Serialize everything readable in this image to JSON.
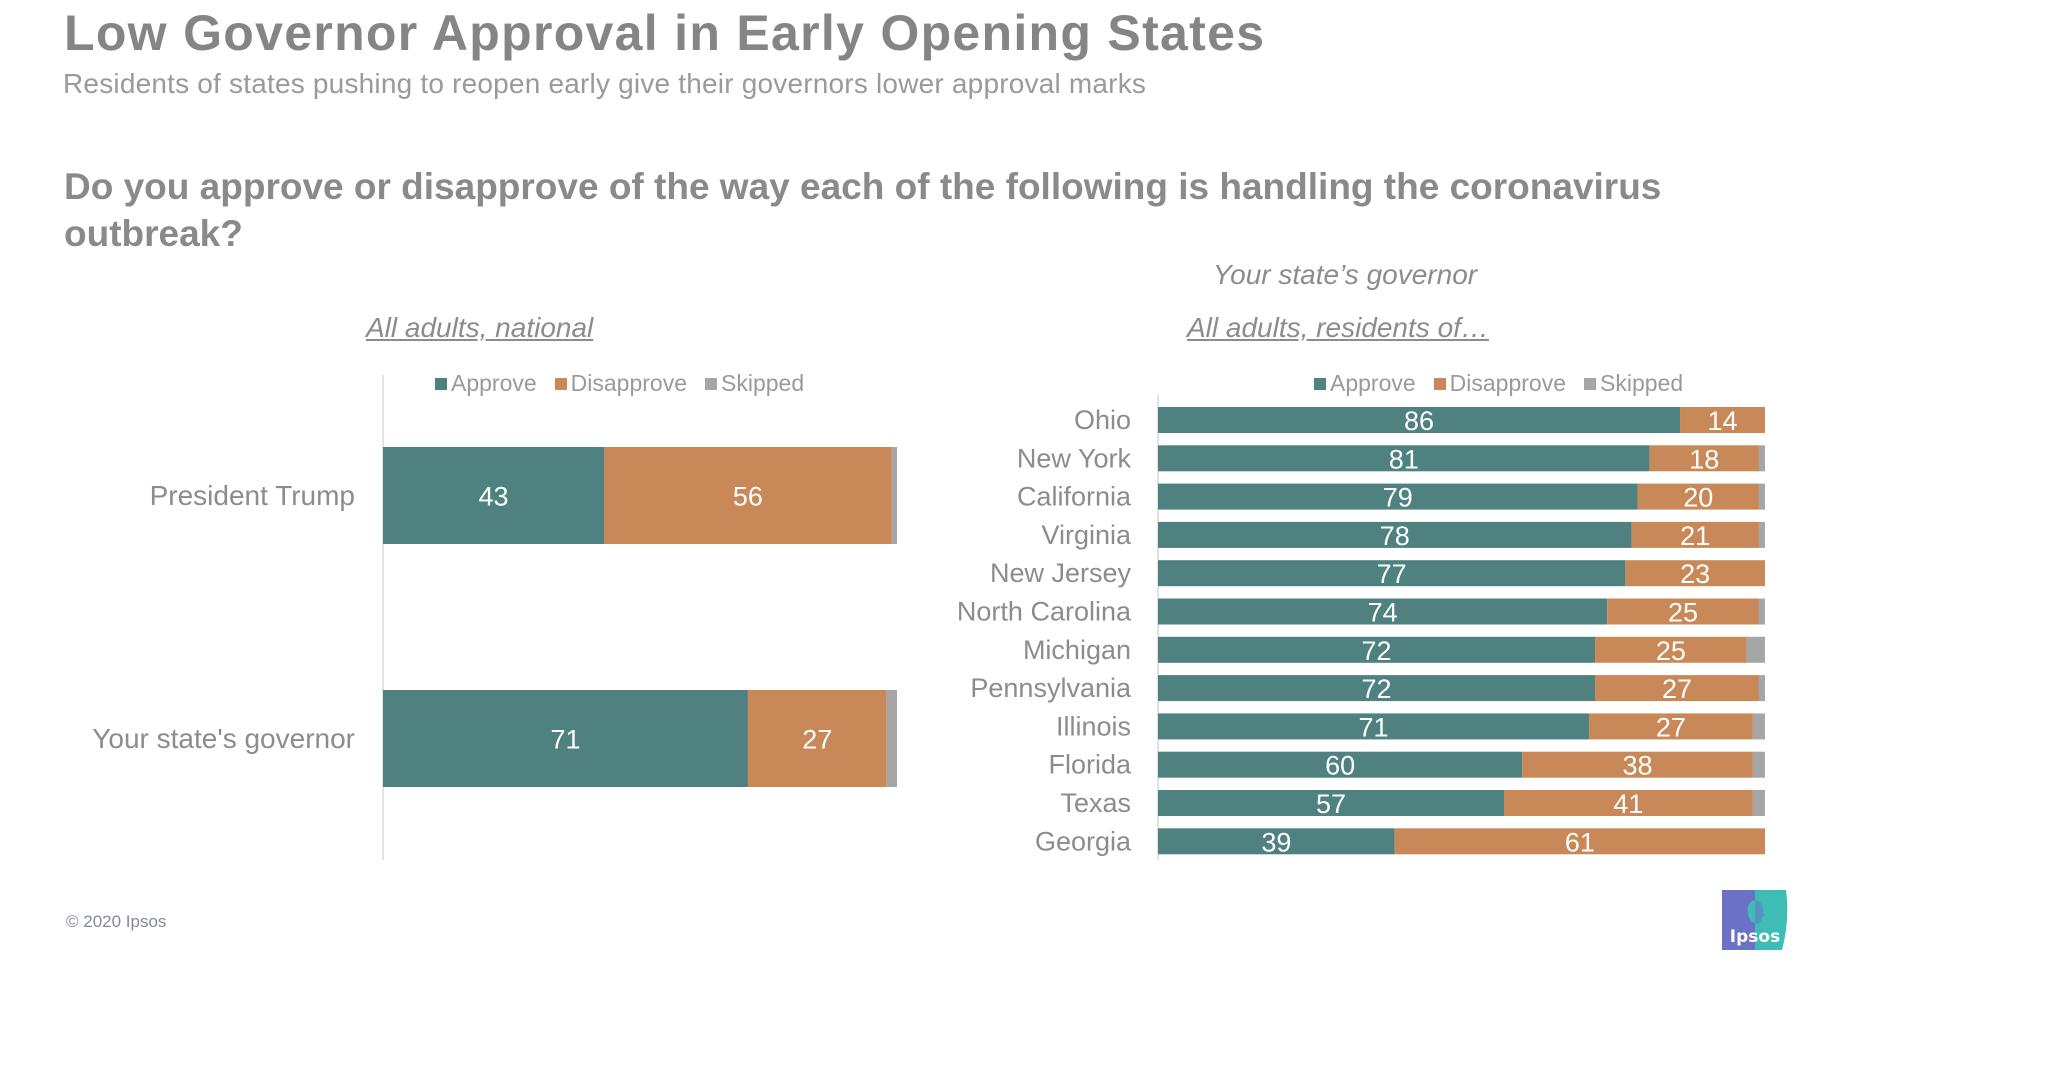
{
  "header": {
    "title": "Low Governor Approval in Early Opening States",
    "subtitle": "Residents of states pushing  to reopen early give their governors lower approval marks",
    "question": "Do you approve or disapprove of the way each of the following is handling the coronavirus outbreak?"
  },
  "colors": {
    "approve": "#4e8180",
    "disapprove": "#c98858",
    "skipped": "#a6a6a6",
    "axis": "#d9d9d9"
  },
  "legend": [
    {
      "label": "Approve",
      "color": "#4e8180"
    },
    {
      "label": "Disapprove",
      "color": "#c98858"
    },
    {
      "label": "Skipped",
      "color": "#a6a6a6"
    }
  ],
  "chart_data": [
    {
      "type": "bar",
      "orientation": "horizontal",
      "stacked": true,
      "title": "All adults, national",
      "categories": [
        "President Trump",
        "Your state's governor"
      ],
      "series": [
        {
          "name": "Approve",
          "values": [
            43,
            71
          ]
        },
        {
          "name": "Disapprove",
          "values": [
            56,
            27
          ]
        },
        {
          "name": "Skipped",
          "values": [
            1,
            2
          ]
        }
      ],
      "xlim": [
        0,
        100
      ],
      "legend_position": "top",
      "grid": false
    },
    {
      "type": "bar",
      "orientation": "horizontal",
      "stacked": true,
      "supertitle": "Your state’s governor",
      "title": "All adults, residents of…",
      "categories": [
        "Ohio",
        "New York",
        "California",
        "Virginia",
        "New Jersey",
        "North Carolina",
        "Michigan",
        "Pennsylvania",
        "Illinois",
        "Florida",
        "Texas",
        "Georgia"
      ],
      "series": [
        {
          "name": "Approve",
          "values": [
            86,
            81,
            79,
            78,
            77,
            74,
            72,
            72,
            71,
            60,
            57,
            39
          ]
        },
        {
          "name": "Disapprove",
          "values": [
            14,
            18,
            20,
            21,
            23,
            25,
            25,
            27,
            27,
            38,
            41,
            61
          ]
        },
        {
          "name": "Skipped",
          "values": [
            0,
            1,
            1,
            1,
            0,
            1,
            3,
            1,
            2,
            2,
            2,
            0
          ]
        }
      ],
      "xlim": [
        0,
        100
      ],
      "legend_position": "top",
      "grid": false
    }
  ],
  "footer": {
    "copyright": "© 2020 Ipsos",
    "logo_text": "Ipsos"
  }
}
